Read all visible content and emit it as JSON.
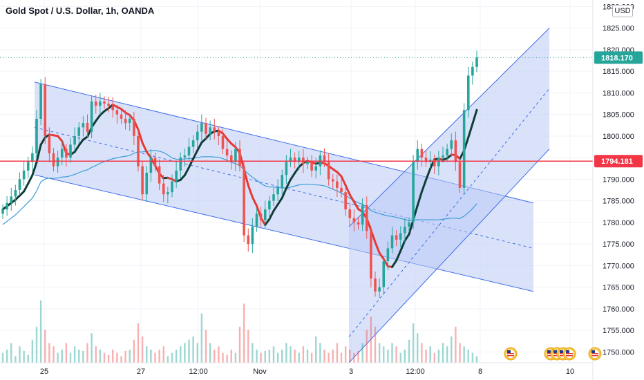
{
  "chart_data": {
    "type": "candlestick",
    "title": "Gold Spot / U.S. Dollar, 1h, OANDA",
    "currency": "USD",
    "y_axis": {
      "ticks": [
        1750,
        1755,
        1760,
        1765,
        1770,
        1775,
        1780,
        1785,
        1790,
        1795,
        1800,
        1805,
        1810,
        1815,
        1820,
        1825,
        1830
      ],
      "tick_labels": [
        "1750.000",
        "1755.000",
        "1760.000",
        "1765.000",
        "1770.000",
        "1775.000",
        "1780.000",
        "1785.000",
        "1790.000",
        "1795.000",
        "1800.000",
        "1805.000",
        "1810.000",
        "1815.000",
        "1820.000",
        "1825.000",
        "1830.000"
      ],
      "range": [
        1747.5,
        1831.5
      ]
    },
    "x_axis": {
      "tick_labels": [
        "25",
        "27",
        "12:00",
        "Nov",
        "3",
        "12:00",
        "8",
        "10"
      ]
    },
    "last_price": {
      "value": 1818.17,
      "label": "1818.170",
      "color": "#26a69a"
    },
    "horizontal_line": {
      "value": 1794.181,
      "label": "1794.181",
      "color": "#f23645"
    },
    "colors": {
      "up": "#26a69a",
      "down": "#ef5350",
      "channel_fill": "#bccaf6",
      "channel_line": "#3e6ee8",
      "ma_long": "#3b9bd9",
      "trend_up": "#0f3d36",
      "trend_down": "#e53935"
    },
    "candles_close": [
      1783.0,
      1784.5,
      1786.0,
      1787.5,
      1790.0,
      1792.0,
      1794.0,
      1796.0,
      1804.0,
      1812.0,
      1800.0,
      1796.0,
      1793.0,
      1795.0,
      1797.0,
      1795.0,
      1798.0,
      1800.0,
      1802.0,
      1803.0,
      1801.0,
      1808.0,
      1807.0,
      1808.0,
      1807.5,
      1807.0,
      1806.0,
      1805.0,
      1804.0,
      1803.0,
      1804.0,
      1800.0,
      1793.0,
      1786.5,
      1791.5,
      1795.0,
      1793.0,
      1789.0,
      1786.5,
      1787.0,
      1789.5,
      1792.0,
      1795.0,
      1795.5,
      1797.5,
      1799.0,
      1801.0,
      1803.0,
      1800.5,
      1802.0,
      1801.0,
      1800.0,
      1797.0,
      1795.5,
      1794.0,
      1797.0,
      1793.0,
      1777.0,
      1775.0,
      1779.0,
      1782.0,
      1780.5,
      1783.0,
      1785.0,
      1786.5,
      1788.0,
      1791.0,
      1794.0,
      1795.0,
      1794.0,
      1795.0,
      1793.5,
      1794.0,
      1792.0,
      1793.0,
      1795.5,
      1794.0,
      1790.0,
      1789.5,
      1788.0,
      1787.0,
      1783.0,
      1781.0,
      1780.0,
      1779.5,
      1784.0,
      1778.0,
      1767.0,
      1764.0,
      1765.0,
      1771.0,
      1774.0,
      1777.0,
      1776.0,
      1777.5,
      1779.0,
      1780.0,
      1794.0,
      1797.0,
      1795.0,
      1794.0,
      1794.5,
      1793.0,
      1795.0,
      1795.5,
      1797.0,
      1799.0,
      1794.0,
      1788.0,
      1806.0,
      1814.0,
      1816.0,
      1818.17
    ],
    "volume_relative": [
      0.15,
      0.2,
      0.3,
      0.1,
      0.25,
      0.18,
      0.12,
      0.35,
      0.55,
      0.95,
      0.5,
      0.3,
      0.25,
      0.15,
      0.2,
      0.3,
      0.15,
      0.25,
      0.2,
      0.18,
      0.3,
      0.45,
      0.25,
      0.2,
      0.15,
      0.12,
      0.2,
      0.15,
      0.1,
      0.18,
      0.2,
      0.35,
      0.6,
      0.4,
      0.25,
      0.2,
      0.15,
      0.2,
      0.25,
      0.1,
      0.15,
      0.2,
      0.25,
      0.3,
      0.35,
      0.4,
      0.3,
      0.75,
      0.5,
      0.3,
      0.2,
      0.25,
      0.15,
      0.12,
      0.2,
      0.15,
      0.55,
      0.9,
      0.5,
      0.3,
      0.2,
      0.15,
      0.18,
      0.2,
      0.25,
      0.15,
      0.2,
      0.3,
      0.25,
      0.2,
      0.15,
      0.25,
      0.2,
      0.15,
      0.4,
      0.3,
      0.2,
      0.15,
      0.2,
      0.3,
      0.15,
      0.25,
      0.2,
      0.15,
      0.18,
      0.3,
      0.5,
      0.7,
      0.55,
      0.3,
      0.25,
      0.2,
      0.3,
      0.25,
      0.15,
      0.2,
      0.35,
      0.6,
      0.45,
      0.3,
      0.2,
      0.25,
      0.15,
      0.2,
      0.3,
      0.25,
      0.4,
      0.55,
      0.3,
      0.25,
      0.2,
      0.15,
      0.1
    ],
    "channels": [
      {
        "name": "descending",
        "top": [
          [
            0.0,
            1812.5
          ],
          [
            1.0,
            1784.5
          ]
        ],
        "mid": [
          [
            0.0,
            1802.0
          ],
          [
            1.0,
            1774.0
          ]
        ],
        "bottom": [
          [
            0.0,
            1791.0
          ],
          [
            1.0,
            1764.0
          ]
        ]
      },
      {
        "name": "ascending",
        "top": [
          [
            0.0,
            1779.0
          ],
          [
            1.0,
            1825.0
          ]
        ],
        "mid": [
          [
            0.0,
            1753.5
          ],
          [
            1.0,
            1811.0
          ]
        ],
        "bottom": [
          [
            0.0,
            1747.5
          ],
          [
            1.0,
            1797.0
          ]
        ]
      }
    ]
  }
}
